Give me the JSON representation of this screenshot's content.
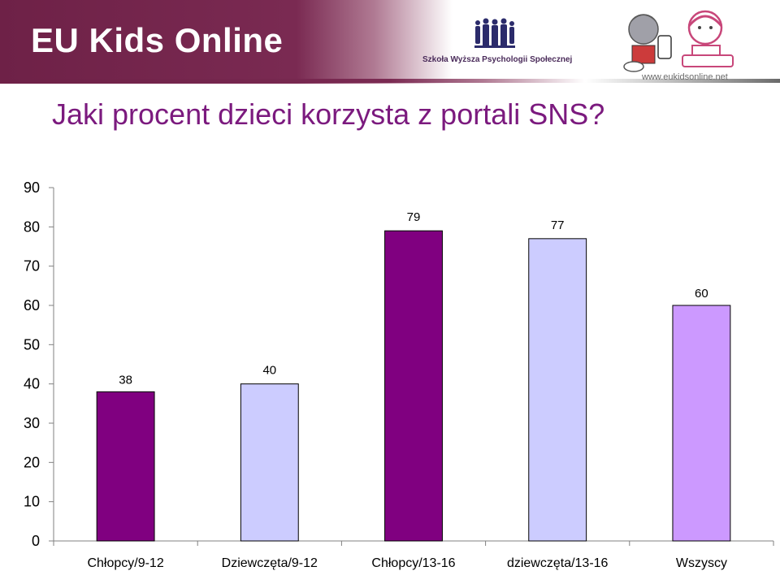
{
  "header": {
    "brand": "EU Kids Online",
    "school": "Szkoła Wyższa Psychologii Społecznej",
    "url": "www.eukidsonline.net"
  },
  "slide": {
    "title": "Jaki procent dzieci korzysta z portali SNS?"
  },
  "colors": {
    "banner": "#6e2147",
    "title": "#7b1a7e",
    "dark_purple": "#800080",
    "light_lavender": "#ccccff",
    "medium_lilac": "#cc99ff"
  },
  "chart_data": {
    "type": "bar",
    "title": "",
    "xlabel": "",
    "ylabel": "",
    "ylim": [
      0,
      90
    ],
    "yticks": [
      0,
      10,
      20,
      30,
      40,
      50,
      60,
      70,
      80,
      90
    ],
    "grid": false,
    "legend": "none",
    "categories": [
      "Chłopcy/9-12",
      "Dziewczęta/9-12",
      "Chłopcy/13-16",
      "dziewczęta/13-16",
      "Wszyscy"
    ],
    "values": [
      38,
      40,
      79,
      77,
      60
    ],
    "value_labels": [
      "38",
      "40",
      "79",
      "77",
      "60"
    ],
    "bar_colors": [
      "#800080",
      "#ccccff",
      "#800080",
      "#ccccff",
      "#cc99ff"
    ]
  }
}
